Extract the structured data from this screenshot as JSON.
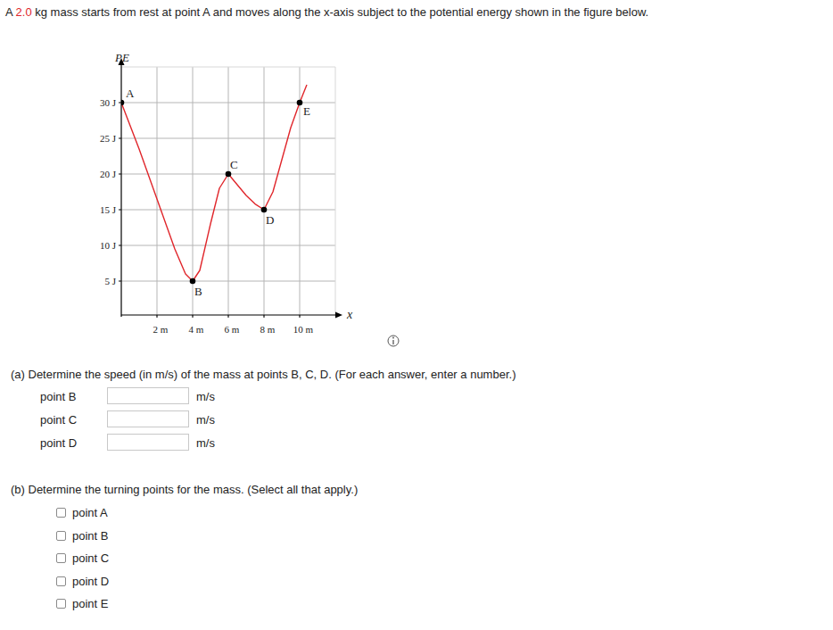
{
  "problem": {
    "before": "A ",
    "mass": "2.0",
    "after": " kg mass starts from rest at point A and moves along the x-axis subject to the potential energy shown in the figure below."
  },
  "chart_data": {
    "type": "line",
    "y_label": "PE",
    "x_label": "x",
    "x": [
      0,
      1,
      2,
      3,
      3.6,
      4,
      4.4,
      5,
      5.5,
      6,
      6.5,
      7,
      7.5,
      8,
      8.5,
      9,
      9.5,
      10,
      10.4
    ],
    "values": [
      30,
      23.5,
      16.5,
      9.5,
      6,
      5,
      6.5,
      13,
      18,
      20,
      18.5,
      17,
      15.8,
      15,
      17.5,
      22,
      26.5,
      30,
      32.5
    ],
    "color": "#e0262b",
    "xlim": [
      0,
      12
    ],
    "ylim": [
      0,
      35
    ],
    "xticks": [
      {
        "value": 2,
        "label": "2 m"
      },
      {
        "value": 4,
        "label": "4 m"
      },
      {
        "value": 6,
        "label": "6 m"
      },
      {
        "value": 8,
        "label": "8 m"
      },
      {
        "value": 10,
        "label": "10 m"
      }
    ],
    "yticks": [
      {
        "value": 5,
        "label": "5 J"
      },
      {
        "value": 10,
        "label": "10 J"
      },
      {
        "value": 15,
        "label": "15 J"
      },
      {
        "value": 20,
        "label": "20 J"
      },
      {
        "value": 25,
        "label": "25 J"
      },
      {
        "value": 30,
        "label": "30 J"
      }
    ],
    "grid": true,
    "points": [
      {
        "label": "A",
        "x": 0,
        "y": 30
      },
      {
        "label": "B",
        "x": 4,
        "y": 5
      },
      {
        "label": "C",
        "x": 6,
        "y": 20
      },
      {
        "label": "D",
        "x": 8,
        "y": 15
      },
      {
        "label": "E",
        "x": 10,
        "y": 30
      }
    ]
  },
  "part_a": {
    "prompt": "(a)  Determine the speed (in m/s) of the mass at points B, C, D. (For each answer, enter a number.)",
    "rows": [
      {
        "label": "point B",
        "unit": "m/s"
      },
      {
        "label": "point C",
        "unit": "m/s"
      },
      {
        "label": "point D",
        "unit": "m/s"
      }
    ]
  },
  "part_b": {
    "prompt": "(b)  Determine the turning points for the mass. (Select all that apply.)",
    "options": [
      "point A",
      "point B",
      "point C",
      "point D",
      "point E"
    ]
  }
}
